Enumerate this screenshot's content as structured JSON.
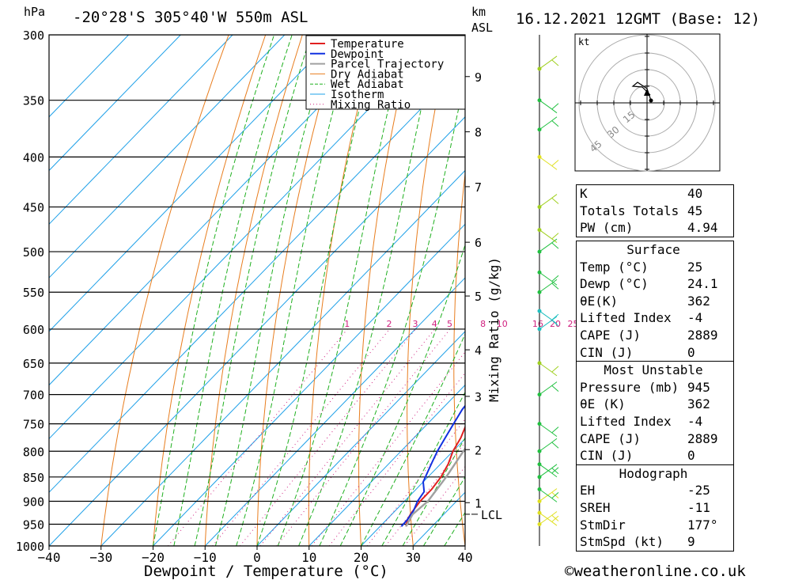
{
  "header": {
    "hpa_unit": "hPa",
    "location": "-20°28'S  305°40'W  550m  ASL",
    "km_unit": "km",
    "asl": "ASL",
    "datetime": "16.12.2021  12GMT  (Base: 12)"
  },
  "legend": [
    "Temperature",
    "Dewpoint",
    "Parcel Trajectory",
    "Dry Adiabat",
    "Wet Adiabat",
    "Isotherm",
    "Mixing Ratio"
  ],
  "colors": {
    "temperature": "#e02020",
    "dewpoint": "#1030e0",
    "parcel": "#a0a0a0",
    "dry_adiabat": "#e87d1e",
    "wet_adiabat": "#20b020",
    "isotherm": "#1ea0e8",
    "mixing_ratio": "#d0207f",
    "wind": "#a0d020"
  },
  "chart_data": {
    "type": "line",
    "xlabel": "Dewpoint / Temperature (°C)",
    "ylabel_right": "Mixing Ratio (g/kg)",
    "x_ticks": [
      -40,
      -30,
      -20,
      -10,
      0,
      10,
      20,
      30,
      40
    ],
    "pressure_levels": [
      300,
      350,
      400,
      450,
      500,
      550,
      600,
      650,
      700,
      750,
      800,
      850,
      900,
      950,
      1000
    ],
    "km_ticks": [
      {
        "km": "1",
        "p": 903
      },
      {
        "km": "2",
        "p": 797
      },
      {
        "km": "3",
        "p": 703
      },
      {
        "km": "4",
        "p": 630
      },
      {
        "km": "5",
        "p": 555
      },
      {
        "km": "6",
        "p": 489
      },
      {
        "km": "7",
        "p": 429
      },
      {
        "km": "8",
        "p": 377
      },
      {
        "km": "9",
        "p": 331
      }
    ],
    "lcl_label": "LCL",
    "lcl_pressure": 928,
    "mixing_ratio_labels": [
      "1",
      "2",
      "3",
      "4",
      "5",
      "8",
      "10",
      "16",
      "20",
      "25"
    ],
    "mixing_ratio_values": [
      1,
      2,
      3,
      4,
      5,
      8,
      10,
      16,
      20,
      25
    ],
    "series": [
      {
        "name": "Temperature",
        "points": [
          [
            955,
            25
          ],
          [
            940,
            24
          ],
          [
            925,
            23.5
          ],
          [
            900,
            23
          ],
          [
            875,
            23
          ],
          [
            850,
            22.5
          ],
          [
            825,
            21.5
          ],
          [
            800,
            20
          ],
          [
            775,
            19
          ],
          [
            750,
            17.5
          ],
          [
            725,
            16
          ],
          [
            700,
            14.5
          ],
          [
            675,
            13.5
          ],
          [
            650,
            12
          ],
          [
            625,
            11
          ],
          [
            600,
            10
          ],
          [
            575,
            9
          ],
          [
            550,
            8
          ],
          [
            525,
            7
          ],
          [
            500,
            5
          ],
          [
            475,
            3.5
          ],
          [
            450,
            2
          ],
          [
            425,
            0
          ],
          [
            400,
            -2.5
          ],
          [
            375,
            -5
          ],
          [
            350,
            -7
          ],
          [
            325,
            -10
          ],
          [
            300,
            -13
          ]
        ]
      },
      {
        "name": "Dewpoint",
        "points": [
          [
            955,
            24.1
          ],
          [
            940,
            24
          ],
          [
            920,
            23.5
          ],
          [
            900,
            22.5
          ],
          [
            880,
            22
          ],
          [
            860,
            20
          ],
          [
            840,
            19
          ],
          [
            820,
            18
          ],
          [
            800,
            17
          ],
          [
            775,
            16
          ],
          [
            750,
            15
          ],
          [
            725,
            14
          ],
          [
            700,
            13.5
          ],
          [
            675,
            12
          ],
          [
            650,
            11
          ],
          [
            625,
            10
          ],
          [
            600,
            9
          ],
          [
            580,
            8
          ],
          [
            560,
            2
          ],
          [
            545,
            -1
          ],
          [
            540,
            -5
          ],
          [
            535,
            -7
          ],
          [
            525,
            2
          ],
          [
            510,
            5
          ],
          [
            495,
            6
          ],
          [
            480,
            -10
          ],
          [
            470,
            -5
          ],
          [
            460,
            -10
          ],
          [
            450,
            -13
          ],
          [
            430,
            -8
          ],
          [
            415,
            -10
          ],
          [
            400,
            -14
          ],
          [
            390,
            -14
          ],
          [
            370,
            -15
          ],
          [
            350,
            -18
          ],
          [
            340,
            -19
          ],
          [
            325,
            -16
          ],
          [
            300,
            -18
          ]
        ]
      },
      {
        "name": "Parcel Trajectory",
        "points": [
          [
            955,
            25
          ],
          [
            928,
            24
          ],
          [
            900,
            24.5
          ],
          [
            850,
            23.5
          ],
          [
            800,
            22
          ],
          [
            750,
            20.5
          ],
          [
            700,
            18.5
          ],
          [
            650,
            16.5
          ],
          [
            600,
            13.5
          ],
          [
            550,
            10.5
          ],
          [
            500,
            7
          ],
          [
            450,
            3
          ],
          [
            400,
            -1.5
          ],
          [
            350,
            -7
          ],
          [
            300,
            -13
          ]
        ]
      }
    ],
    "winds": [
      {
        "p": 950,
        "color": "#e0e020"
      },
      {
        "p": 925,
        "color": "#e0e020"
      },
      {
        "p": 900,
        "color": "#e0e020"
      },
      {
        "p": 875,
        "color": "#20c040"
      },
      {
        "p": 850,
        "color": "#20c040"
      },
      {
        "p": 825,
        "color": "#20c040"
      },
      {
        "p": 800,
        "color": "#20c040"
      },
      {
        "p": 750,
        "color": "#20c040"
      },
      {
        "p": 700,
        "color": "#20c040"
      },
      {
        "p": 650,
        "color": "#a0d020"
      },
      {
        "p": 600,
        "color": "#20c0c0"
      },
      {
        "p": 575,
        "color": "#20c0c0"
      },
      {
        "p": 550,
        "color": "#20c040"
      },
      {
        "p": 525,
        "color": "#20c040"
      },
      {
        "p": 500,
        "color": "#20c040"
      },
      {
        "p": 475,
        "color": "#a0d020"
      },
      {
        "p": 450,
        "color": "#a0d020"
      },
      {
        "p": 400,
        "color": "#e0e020"
      },
      {
        "p": 375,
        "color": "#20c040"
      },
      {
        "p": 350,
        "color": "#20c040"
      },
      {
        "p": 325,
        "color": "#a0d020"
      }
    ]
  },
  "hodograph": {
    "unit": "kt",
    "ring_labels": [
      "15",
      "30",
      "45"
    ]
  },
  "indices": [
    {
      "label": "K",
      "value": "40"
    },
    {
      "label": "Totals Totals",
      "value": "45"
    },
    {
      "label": "PW (cm)",
      "value": "4.94"
    }
  ],
  "surface": {
    "title": "Surface",
    "rows": [
      {
        "label": "Temp (°C)",
        "value": "25"
      },
      {
        "label": "Dewp (°C)",
        "value": "24.1"
      },
      {
        "label": "θE(K)",
        "value": "362"
      },
      {
        "label": "Lifted Index",
        "value": "-4"
      },
      {
        "label": "CAPE (J)",
        "value": "2889"
      },
      {
        "label": "CIN (J)",
        "value": "0"
      }
    ]
  },
  "most_unstable": {
    "title": "Most Unstable",
    "rows": [
      {
        "label": "Pressure (mb)",
        "value": "945"
      },
      {
        "label": "θE (K)",
        "value": "362"
      },
      {
        "label": "Lifted Index",
        "value": "-4"
      },
      {
        "label": "CAPE (J)",
        "value": "2889"
      },
      {
        "label": "CIN (J)",
        "value": "0"
      }
    ]
  },
  "hodograph_table": {
    "title": "Hodograph",
    "rows": [
      {
        "label": "EH",
        "value": "-25"
      },
      {
        "label": "SREH",
        "value": "-11"
      },
      {
        "label": "StmDir",
        "value": "177°"
      },
      {
        "label": "StmSpd (kt)",
        "value": "9"
      }
    ]
  },
  "footer": {
    "copyright": "©weatheronline.co.uk"
  }
}
